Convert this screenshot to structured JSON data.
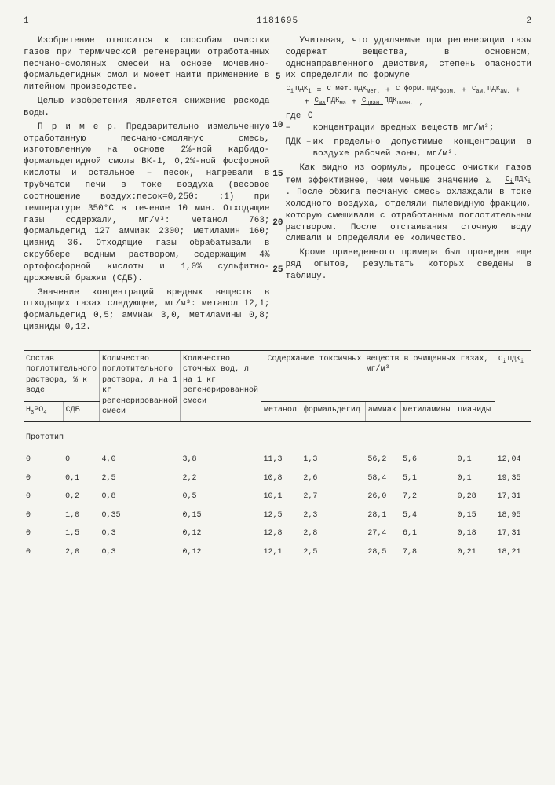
{
  "header": {
    "leftNum": "1",
    "docId": "1181695",
    "rightNum": "2"
  },
  "leftCol": {
    "p1": "Изобретение относится к способам очистки газов при термической регенерации отработанных песчано-смоляных смесей на основе мочевино-формальдегидных смол и может найти применение в литейном производстве.",
    "p2": "Целью изобретения является снижение расхода воды.",
    "p3a": "П р и м е р. Предварительно измельченную отработанную песчано-смоляную смесь, изготовленную на основе 2%-ной карбидо-формальдегидной смолы ВК-1, 0,2%-ной фосфорной кислоты и остальное – песок, нагревали в трубчатой печи в токе воздуха (весовое соотношение воздух:песок=0,250: :1) при температуре 350°С в течение 10 мин. Отходящие газы содержали, мг/м³: метанол 763; формальдегид 127 аммиак 2300; метиламин 160; цианид 36. Отходящие газы обрабатывали в скруббере водным раствором, содержащим 4% ортофосфорной кислоты и 1,0% сульфитно-дрожжевой бражки (СДБ).",
    "p4": "Значение концентраций вредных веществ в отходящих газах следующее, мг/м³: метанол 12,1; формальдегид 0,5; аммиак 3,0, метиламины 0,8; цианиды 0,12."
  },
  "rightCol": {
    "p1": "Учитывая, что удаляемые при регенерации газы содержат вещества, в основном, однонаправленного действия, степень опасности их определяли по формуле",
    "defC": "концентрации вредных веществ мг/м³;",
    "defPDK": "их предельно допустимые концентрации в воздухе рабочей зоны, мг/м³.",
    "p2a": "Как видно из формулы, процесс очистки газов тем эффективнее, чем меньше значение",
    "p2b": ". После обжига песчаную смесь охлаждали в токе холодного воздуха, отделяли пылевидную фракцию, которую смешивали с отработанным поглотительным раствором. После отстаивания сточную воду сливали и определяли ее количество.",
    "p3": "Кроме приведенного примера был проведен еще ряд опытов, результаты которых сведены в таблицу."
  },
  "marginNums": {
    "n5": "5",
    "n10": "10",
    "n15": "15",
    "n20": "20",
    "n25": "25"
  },
  "table": {
    "head": {
      "comp": "Состав поглотительного раствора, % к воде",
      "h3po4": "H₃PO₄",
      "sdb": "СДБ",
      "qtySol": "Количество поглотительного раствора, л на 1 кг регенерированной смеси",
      "qtyWater": "Количество сточных вод, л на 1 кг регенерированной смеси",
      "toxGroup": "Содержание токсичных веществ в очищенных газах, мг/м³",
      "meth": "метанол",
      "form": "формальдегид",
      "amm": "аммиак",
      "metam": "метиламины",
      "cyan": "цианиды",
      "ratio": "Ci/ПДКi"
    },
    "protoLabel": "Прототип",
    "rows": [
      {
        "h3po4": "0",
        "sdb": "0",
        "qsol": "4,0",
        "qwat": "3,8",
        "met": "11,3",
        "for": "1,3",
        "amm": "56,2",
        "mam": "5,6",
        "cya": "0,1",
        "rat": "12,04"
      },
      {
        "h3po4": "0",
        "sdb": "0,1",
        "qsol": "2,5",
        "qwat": "2,2",
        "met": "10,8",
        "for": "2,6",
        "amm": "58,4",
        "mam": "5,1",
        "cya": "0,1",
        "rat": "19,35"
      },
      {
        "h3po4": "0",
        "sdb": "0,2",
        "qsol": "0,8",
        "qwat": "0,5",
        "met": "10,1",
        "for": "2,7",
        "amm": "26,0",
        "mam": "7,2",
        "cya": "0,28",
        "rat": "17,31"
      },
      {
        "h3po4": "0",
        "sdb": "1,0",
        "qsol": "0,35",
        "qwat": "0,15",
        "met": "12,5",
        "for": "2,3",
        "amm": "28,1",
        "mam": "5,4",
        "cya": "0,15",
        "rat": "18,95"
      },
      {
        "h3po4": "0",
        "sdb": "1,5",
        "qsol": "0,3",
        "qwat": "0,12",
        "met": "12,8",
        "for": "2,8",
        "amm": "27,4",
        "mam": "6,1",
        "cya": "0,18",
        "rat": "17,31"
      },
      {
        "h3po4": "0",
        "sdb": "2,0",
        "qsol": "0,3",
        "qwat": "0,12",
        "met": "12,1",
        "for": "2,5",
        "amm": "28,5",
        "mam": "7,8",
        "cya": "0,21",
        "rat": "18,21"
      }
    ]
  }
}
